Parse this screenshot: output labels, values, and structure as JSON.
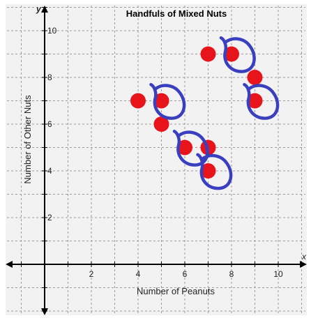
{
  "chart_data": {
    "type": "scatter",
    "title": "Handfuls of Mixed Nuts",
    "xlabel": "Number of Peanuts",
    "ylabel": "Number of Other Nuts",
    "x_axis_letter": "x",
    "y_axis_letter": "y",
    "xlim": [
      -2,
      11
    ],
    "ylim": [
      -2.2,
      11
    ],
    "grid": true,
    "x_ticks": [
      2,
      4,
      6,
      8,
      10
    ],
    "y_ticks": [
      2,
      4,
      6,
      8,
      10
    ],
    "point_color": "#e8141b",
    "annotation_color": "#3a3fbf",
    "points": [
      {
        "x": 4,
        "y": 7
      },
      {
        "x": 5,
        "y": 7
      },
      {
        "x": 5,
        "y": 6
      },
      {
        "x": 6,
        "y": 5
      },
      {
        "x": 7,
        "y": 5
      },
      {
        "x": 7,
        "y": 4
      },
      {
        "x": 7,
        "y": 9
      },
      {
        "x": 8,
        "y": 9
      },
      {
        "x": 9,
        "y": 8
      },
      {
        "x": 9,
        "y": 7
      }
    ],
    "annotations": [
      {
        "type": "hand-drawn-loop",
        "near": {
          "x": 5,
          "y": 7
        }
      },
      {
        "type": "hand-drawn-loop",
        "near": {
          "x": 6,
          "y": 5
        }
      },
      {
        "type": "hand-drawn-loop",
        "near": {
          "x": 7,
          "y": 4
        }
      },
      {
        "type": "hand-drawn-loop",
        "near": {
          "x": 8,
          "y": 9
        }
      },
      {
        "type": "hand-drawn-loop",
        "near": {
          "x": 9,
          "y": 7
        }
      }
    ]
  }
}
